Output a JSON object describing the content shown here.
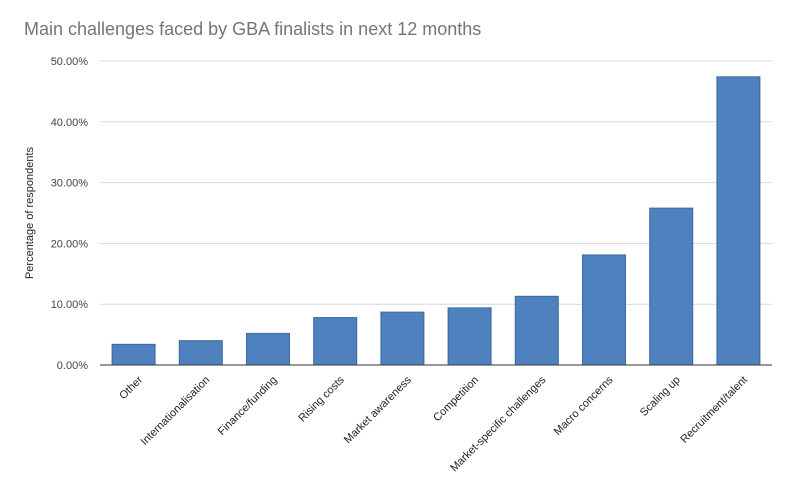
{
  "chart_data": {
    "type": "bar",
    "title": "Main challenges faced by GBA finalists in next 12 months",
    "xlabel": "",
    "ylabel": "Percentage of respondents",
    "categories": [
      "Other",
      "Internationalisation",
      "Finance/funding",
      "Rising costs",
      "Market awareness",
      "Competition",
      "Market-specific challenges",
      "Macro concerns",
      "Scaling up",
      "Recruitment/talent"
    ],
    "values": [
      3.4,
      4.0,
      5.2,
      7.8,
      8.7,
      9.4,
      11.3,
      18.1,
      25.8,
      47.4
    ],
    "ylim": [
      0,
      50
    ],
    "yticks": [
      "0.00%",
      "10.00%",
      "20.00%",
      "30.00%",
      "40.00%",
      "50.00%"
    ],
    "grid": true,
    "legend": "none",
    "colors": {
      "bar": "#4e81bd",
      "bar_border": "#3b6aa3",
      "grid": "#d9d9d9",
      "axis": "#333333"
    }
  }
}
